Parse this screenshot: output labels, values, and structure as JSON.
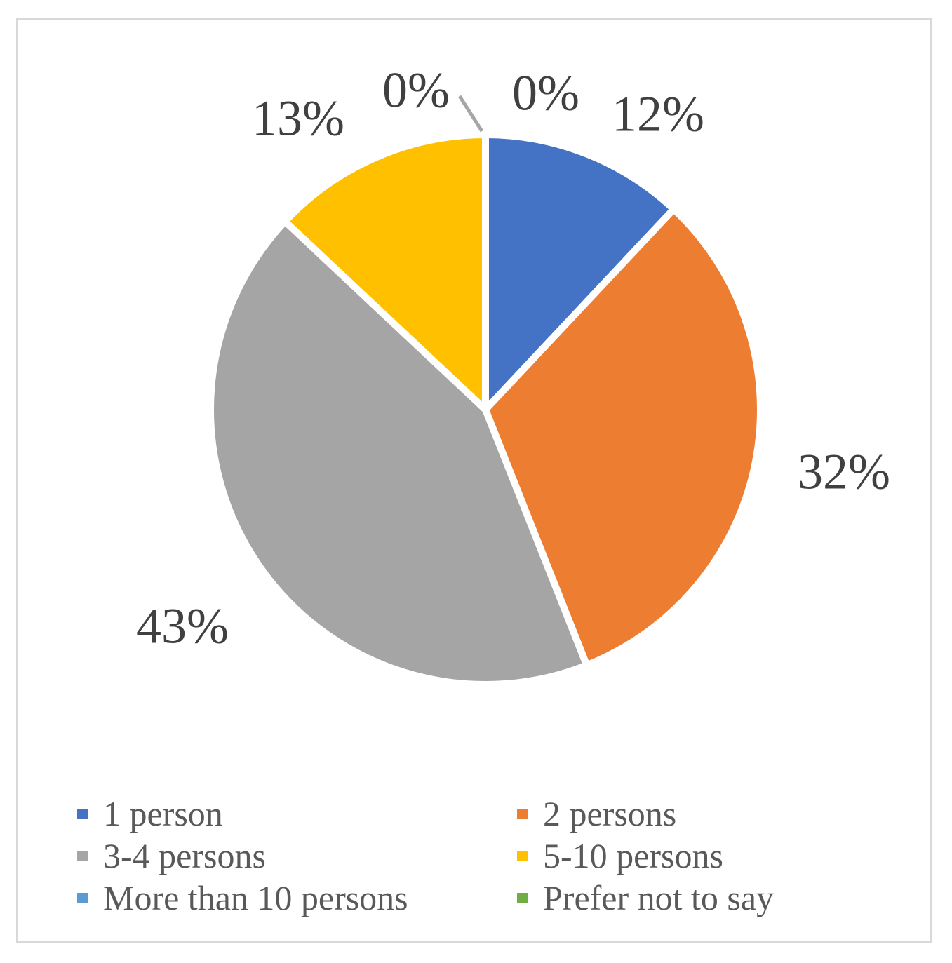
{
  "chart_data": {
    "type": "pie",
    "title": "",
    "slices": [
      {
        "label": "1 person",
        "value": 12,
        "color": "#4472C4",
        "data_label": "12%"
      },
      {
        "label": "2 persons",
        "value": 32,
        "color": "#ED7D31",
        "data_label": "32%"
      },
      {
        "label": "3-4 persons",
        "value": 43,
        "color": "#A5A5A5",
        "data_label": "43%"
      },
      {
        "label": "5-10 persons",
        "value": 13,
        "color": "#FFC000",
        "data_label": "13%"
      },
      {
        "label": "More than 10 persons",
        "value": 0,
        "color": "#5B9BD5",
        "data_label": "0%"
      },
      {
        "label": "Prefer not to say",
        "value": 0,
        "color": "#70AD47",
        "data_label": "0%"
      }
    ],
    "legend": {
      "position": "bottom",
      "items": [
        "1 person",
        "2 persons",
        "3-4 persons",
        "5-10 persons",
        "More than 10 persons",
        "Prefer not to say"
      ]
    },
    "label_color": "#404040",
    "border_color": "#D9D9D9"
  }
}
